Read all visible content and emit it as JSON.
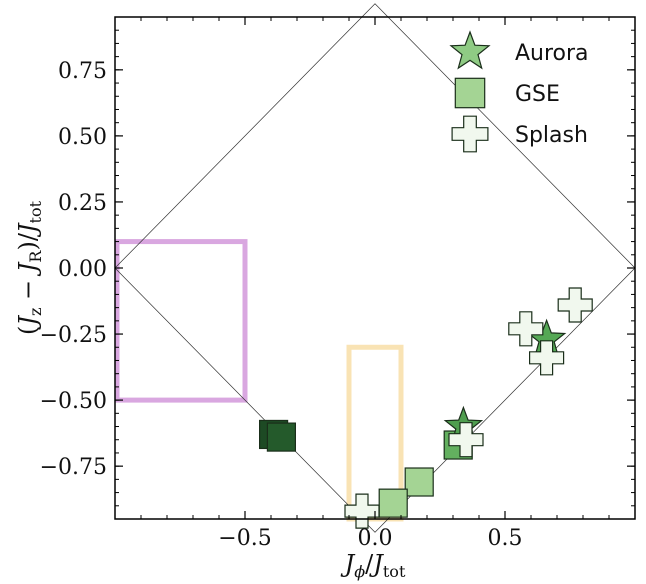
{
  "chart_data": {
    "type": "scatter",
    "xlim": [
      -1.0,
      1.0
    ],
    "ylim": [
      -0.95,
      0.95
    ],
    "x_ticks": [
      -0.5,
      0.0,
      0.5
    ],
    "x_tick_labels": [
      "−0.5",
      "0.0",
      "0.5"
    ],
    "y_ticks": [
      0.75,
      0.5,
      0.25,
      0.0,
      -0.25,
      -0.5,
      -0.75
    ],
    "y_tick_labels": [
      "0.75",
      "0.50",
      "0.25",
      "0.00",
      "−0.25",
      "−0.50",
      "−0.75"
    ],
    "xlabel": "Jϕ/Jtot",
    "ylabel": "(Jz − JR)/Jtot",
    "grid": false,
    "legend_position": "top-right",
    "boundary_diamond": [
      [
        0,
        1
      ],
      [
        1,
        0
      ],
      [
        0,
        -1
      ],
      [
        -1,
        0
      ]
    ],
    "regions": [
      {
        "x": [
          -1.0,
          -0.5
        ],
        "y": [
          -0.5,
          0.1
        ],
        "color": "#d9a7e0"
      },
      {
        "x": [
          -0.1,
          0.1
        ],
        "y": [
          -0.95,
          -0.3
        ],
        "color": "#f9e3b4"
      }
    ],
    "series": [
      {
        "name": "Aurora",
        "marker": "star",
        "points": [
          {
            "x": 0.66,
            "y": -0.27,
            "color": "#55a855"
          },
          {
            "x": 0.34,
            "y": -0.6,
            "color": "#4f9e4f"
          }
        ]
      },
      {
        "name": "GSE",
        "marker": "square",
        "points": [
          {
            "x": -0.39,
            "y": -0.63,
            "color": "#1d4a24"
          },
          {
            "x": -0.36,
            "y": -0.64,
            "color": "#245a2b"
          },
          {
            "x": 0.32,
            "y": -0.67,
            "color": "#63b05f"
          },
          {
            "x": 0.17,
            "y": -0.81,
            "color": "#a4d494"
          },
          {
            "x": 0.07,
            "y": -0.89,
            "color": "#a4d494"
          }
        ]
      },
      {
        "name": "Splash",
        "marker": "cross",
        "points": [
          {
            "x": 0.77,
            "y": -0.14,
            "color": "#f1f8ee"
          },
          {
            "x": 0.58,
            "y": -0.23,
            "color": "#f1f8ee"
          },
          {
            "x": 0.66,
            "y": -0.34,
            "color": "#f1f8ee"
          },
          {
            "x": 0.35,
            "y": -0.65,
            "color": "#f1f8ee"
          },
          {
            "x": -0.05,
            "y": -0.92,
            "color": "#f1f8ee"
          }
        ]
      }
    ],
    "legend": [
      {
        "label": "Aurora",
        "marker": "star",
        "color": "#8fcb84"
      },
      {
        "label": "GSE",
        "marker": "square",
        "color": "#a4d494"
      },
      {
        "label": "Splash",
        "marker": "cross",
        "color": "#f1f8ee"
      }
    ]
  }
}
